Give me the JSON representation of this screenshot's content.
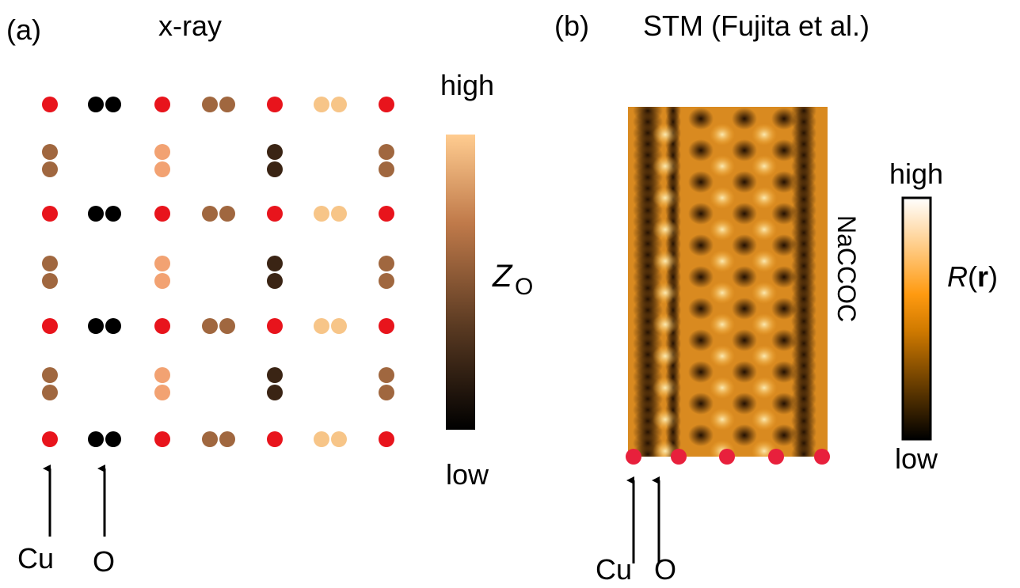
{
  "panel_a": {
    "label": "(a)",
    "title": "x-ray",
    "colorbar": {
      "high": "high",
      "low": "low",
      "symbol": "Z",
      "subscript": "O"
    },
    "arrows": {
      "cu": "Cu",
      "o": "O"
    }
  },
  "panel_b": {
    "label": "(b)",
    "title": "STM (Fujita et al.)",
    "sample": "NaCCOC",
    "colorbar": {
      "high": "high",
      "low": "low",
      "symbol": "R",
      "open": "(",
      "vector": "r",
      "close": ")"
    },
    "arrows": {
      "cu": "Cu",
      "o": "O"
    }
  }
}
